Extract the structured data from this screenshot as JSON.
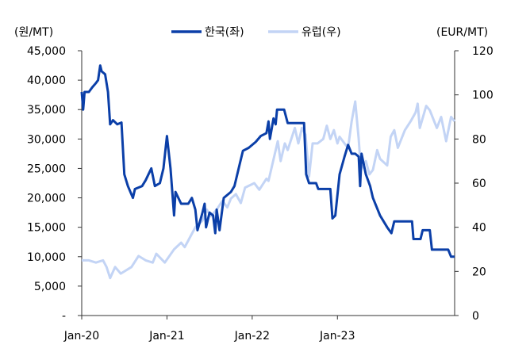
{
  "chart_data": {
    "type": "line",
    "title": "",
    "left_axis_unit": "(원/MT)",
    "right_axis_unit": "(EUR/MT)",
    "x_unit": "months since Jan-20",
    "x_range": [
      0,
      52.5
    ],
    "x_ticks": [
      {
        "x": 0,
        "label": "Jan-20"
      },
      {
        "x": 12,
        "label": "Jan-21"
      },
      {
        "x": 24,
        "label": "Jan-22"
      },
      {
        "x": 36,
        "label": "Jan-23"
      }
    ],
    "ylim_left": [
      0,
      45000
    ],
    "yticks_left": [
      "-",
      "5,000",
      "10,000",
      "15,000",
      "20,000",
      "25,000",
      "30,000",
      "35,000",
      "40,000",
      "45,000"
    ],
    "ylim_right": [
      0,
      120
    ],
    "yticks_right": [
      "0",
      "20",
      "40",
      "60",
      "80",
      "100",
      "120"
    ],
    "legend_position": "top-center",
    "series": [
      {
        "name": "한국(좌)",
        "axis": "left",
        "color": "#0b3fa8",
        "x": [
          0,
          0.2,
          0.4,
          1,
          1.5,
          2,
          2.3,
          2.6,
          2.8,
          3.3,
          3.7,
          4,
          4.4,
          5,
          5.6,
          6,
          6.5,
          7.2,
          7.5,
          8.5,
          9,
          9.8,
          10.3,
          11,
          11.5,
          12,
          12.5,
          13,
          13.2,
          14,
          15,
          15.5,
          16,
          16.3,
          17,
          17.3,
          17.5,
          18,
          18.5,
          18.8,
          19,
          19.4,
          20,
          21,
          21.5,
          22.3,
          22.7,
          23.5,
          24.5,
          25.2,
          26,
          26.3,
          26.5,
          27,
          27.3,
          27.5,
          28.5,
          29,
          31.3,
          31.6,
          32,
          33,
          33.3,
          35,
          35.3,
          35.7,
          36.3,
          37,
          37.5,
          38,
          38.5,
          39,
          39.2,
          39.4,
          40,
          40.6,
          41,
          42,
          43,
          43.6,
          44,
          46.5,
          46.7,
          47.7,
          48,
          49,
          49.3,
          51.6,
          52,
          52.5
        ],
        "y": [
          38000,
          35000,
          38000,
          38000,
          38800,
          39500,
          40000,
          42500,
          41500,
          41000,
          38000,
          32500,
          33200,
          32500,
          32800,
          24000,
          22000,
          20000,
          21500,
          22000,
          23000,
          25000,
          22000,
          22500,
          25000,
          30500,
          25000,
          17000,
          21000,
          19000,
          19000,
          20000,
          18000,
          14500,
          17500,
          19000,
          15000,
          17500,
          17000,
          14000,
          18000,
          14500,
          20000,
          21000,
          22000,
          26000,
          28000,
          28500,
          29500,
          30500,
          31000,
          33000,
          30000,
          33500,
          32500,
          35000,
          35000,
          32700,
          32700,
          24000,
          22500,
          22500,
          21500,
          21500,
          16500,
          17000,
          24000,
          27000,
          29000,
          27500,
          27500,
          27000,
          22000,
          27500,
          24000,
          22000,
          20000,
          17000,
          15000,
          14000,
          16000,
          16000,
          13000,
          13000,
          14500,
          14500,
          11200,
          11200,
          10000,
          10000
        ]
      },
      {
        "name": "유럽(우)",
        "axis": "right",
        "color": "#c3d4f5",
        "x": [
          0,
          1,
          2,
          3,
          3.5,
          4,
          4.7,
          5.5,
          7,
          8,
          9,
          10,
          10.5,
          11.7,
          13,
          14,
          14.5,
          15,
          16,
          17,
          17.6,
          18.2,
          19,
          19.8,
          20.5,
          21,
          21.7,
          22.4,
          23,
          24.3,
          25,
          26,
          26.3,
          27.6,
          28,
          28.6,
          29,
          30,
          30.5,
          31,
          31.5,
          32,
          32.5,
          33.2,
          34,
          34.5,
          35,
          35.5,
          36,
          36.3,
          37,
          37.5,
          38,
          38.5,
          39,
          39.3,
          40,
          40.5,
          41,
          41.6,
          42,
          43,
          43.5,
          44,
          44.5,
          45.5,
          46.3,
          47,
          47.3,
          47.6,
          48.5,
          49,
          50,
          50.6,
          51.3,
          52,
          52.5
        ],
        "y": [
          25,
          25,
          24,
          25,
          22,
          17,
          22,
          19,
          22,
          27,
          25,
          24,
          28,
          24,
          30,
          33,
          31,
          34,
          40,
          43,
          48,
          45,
          48,
          52,
          49,
          53,
          55,
          51,
          58,
          60,
          57,
          62,
          61,
          79,
          70,
          78,
          75,
          85,
          78,
          85,
          82,
          63,
          78,
          78,
          80,
          86,
          80,
          84,
          78,
          81,
          78,
          76,
          88,
          97,
          80,
          66,
          70,
          64,
          66,
          75,
          71,
          68,
          81,
          84,
          76,
          84,
          88,
          92,
          96,
          85,
          95,
          93,
          85,
          90,
          79,
          90,
          88
        ]
      }
    ]
  }
}
